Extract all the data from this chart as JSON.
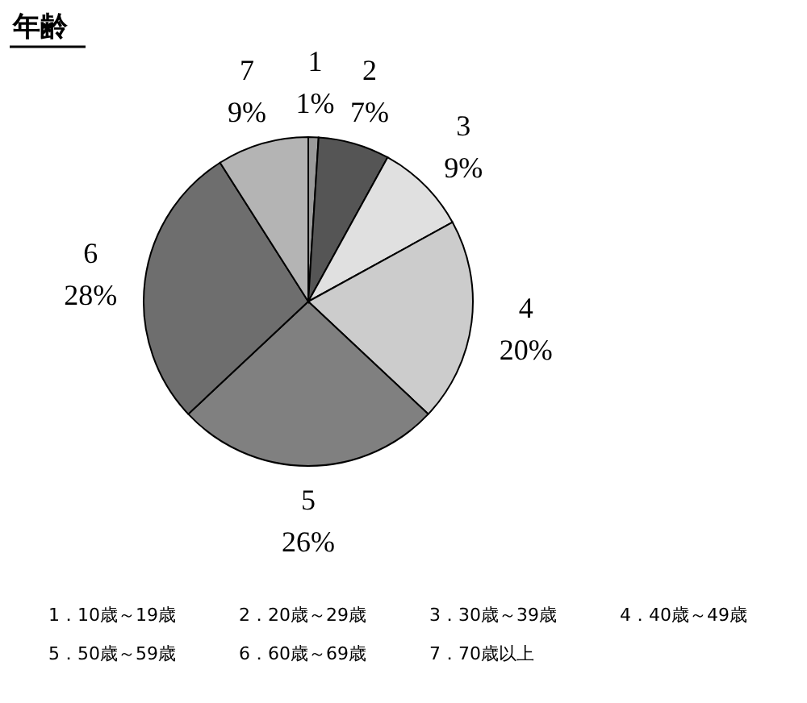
{
  "chart_data": {
    "type": "pie",
    "title": "年齢",
    "categories": [
      "1",
      "2",
      "3",
      "4",
      "5",
      "6",
      "7"
    ],
    "values": [
      1,
      7,
      9,
      20,
      26,
      28,
      9
    ],
    "value_labels": [
      "1%",
      "7%",
      "9%",
      "20%",
      "26%",
      "28%",
      "9%"
    ],
    "colors": [
      "#9a9a9a",
      "#555555",
      "#e0e0e0",
      "#cccccc",
      "#808080",
      "#6e6e6e",
      "#b4b4b4"
    ],
    "annotations": [
      "1．10歳～19歳",
      "2．20歳～29歳",
      "3．30歳～39歳",
      "4．40歳～49歳",
      "5．50歳～59歳",
      "6．60歳～69歳",
      "7．70歳以上"
    ]
  }
}
